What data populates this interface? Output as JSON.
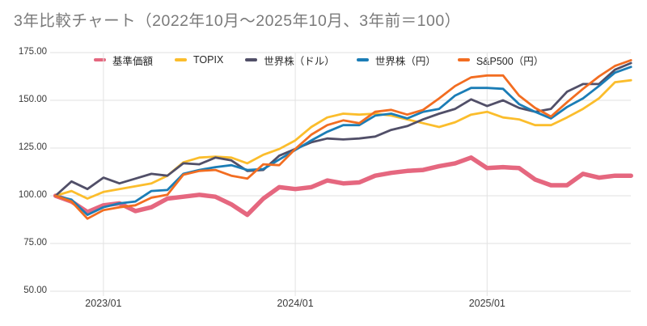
{
  "title": "3年比較チャート（2022年10月～2025年10月、3年前＝100）",
  "colors": {
    "background": "#ffffff",
    "title_text": "#7a7a7a",
    "axis_text": "#3a3a3a",
    "gridline": "#e2e2e2"
  },
  "legend": [
    {
      "key": "kijun-kagaku",
      "label": "基準価額",
      "color": "#e5677f"
    },
    {
      "key": "topix",
      "label": "TOPIX",
      "color": "#fbbd2c"
    },
    {
      "key": "sekaikabu-usd",
      "label": "世界株（ドル）",
      "color": "#514f68"
    },
    {
      "key": "sekaikabu-jpy",
      "label": "世界株（円）",
      "color": "#1b7db6"
    },
    {
      "key": "sp500-jpy",
      "label": "S&P500（円）",
      "color": "#f26d21"
    }
  ],
  "chart_data": {
    "type": "line",
    "title": "3年比較チャート（2022年10月～2025年10月、3年前＝100）",
    "xlabel": "",
    "ylabel": "",
    "ylim": [
      50,
      175
    ],
    "grid": true,
    "legend_position": "top",
    "baseline_note": "3年前＝100",
    "x_months": [
      "2022/10",
      "2022/11",
      "2022/12",
      "2023/01",
      "2023/02",
      "2023/03",
      "2023/04",
      "2023/05",
      "2023/06",
      "2023/07",
      "2023/08",
      "2023/09",
      "2023/10",
      "2023/11",
      "2023/12",
      "2024/01",
      "2024/02",
      "2024/03",
      "2024/04",
      "2024/05",
      "2024/06",
      "2024/07",
      "2024/08",
      "2024/09",
      "2024/10",
      "2024/11",
      "2024/12",
      "2025/01",
      "2025/02",
      "2025/03",
      "2025/04",
      "2025/05",
      "2025/06",
      "2025/07",
      "2025/08",
      "2025/09",
      "2025/10"
    ],
    "x_axis_ticks": [
      {
        "label": "2023/01",
        "month_index": 3
      },
      {
        "label": "2024/01",
        "month_index": 15
      },
      {
        "label": "2025/01",
        "month_index": 27
      }
    ],
    "y_ticks": [
      {
        "value": 175,
        "label": "175.00"
      },
      {
        "value": 150,
        "label": "150.00"
      },
      {
        "value": 125,
        "label": "125.00"
      },
      {
        "value": 100,
        "label": "100.00"
      },
      {
        "value": 75,
        "label": "75.00"
      },
      {
        "value": 50,
        "label": "50.00"
      }
    ],
    "series": [
      {
        "key": "kijun-kagaku",
        "name": "基準価額",
        "color": "#e5677f",
        "stroke_width": 5.5,
        "values": [
          100,
          97,
          91.5,
          95,
          96,
          92,
          94,
          98.5,
          99.5,
          100.5,
          99.5,
          95.5,
          90,
          98.5,
          104.5,
          103.5,
          104.5,
          108,
          106.5,
          107,
          110.5,
          112,
          113,
          113.5,
          115.5,
          117,
          120,
          114.5,
          115,
          114.5,
          108.5,
          105.5,
          105.5,
          111.5,
          109.5,
          110.5,
          110.5
        ]
      },
      {
        "key": "topix",
        "name": "TOPIX",
        "color": "#fbbd2c",
        "stroke_width": 2.8,
        "values": [
          100,
          102.5,
          98.5,
          102,
          103.5,
          105,
          106.5,
          110.5,
          117.5,
          120,
          120.5,
          120,
          117,
          121.5,
          124.5,
          129,
          136,
          141,
          143,
          142.5,
          143,
          142,
          140,
          138,
          136,
          138.5,
          142.5,
          144,
          141,
          140,
          137,
          137,
          141,
          145.5,
          151,
          159.5,
          160.5
        ]
      },
      {
        "key": "sekaikabu-usd",
        "name": "世界株（ドル）",
        "color": "#514f68",
        "stroke_width": 2.8,
        "values": [
          100,
          107.5,
          103.5,
          109.5,
          106.5,
          109,
          111.5,
          110.5,
          117,
          116.5,
          120,
          118.5,
          113,
          113.5,
          121,
          124.5,
          128,
          130,
          129.5,
          130,
          131,
          134.5,
          136.5,
          140,
          143,
          145.5,
          150.5,
          147,
          150,
          146,
          144,
          145.5,
          154.5,
          158.5,
          158.5,
          166,
          169.5
        ]
      },
      {
        "key": "sekaikabu-jpy",
        "name": "世界株（円）",
        "color": "#1b7db6",
        "stroke_width": 2.8,
        "values": [
          100,
          98,
          90,
          94,
          96,
          97,
          102.5,
          103,
          111.5,
          113.5,
          115,
          116,
          113.5,
          114,
          119,
          124,
          129,
          133.5,
          137,
          137,
          142,
          143,
          140.5,
          144,
          145.5,
          152.5,
          156.5,
          156.5,
          156,
          148,
          144,
          140.5,
          146.5,
          151,
          157.5,
          164.5,
          167.5
        ]
      },
      {
        "key": "sp500-jpy",
        "name": "S&P500（円）",
        "color": "#f26d21",
        "stroke_width": 2.8,
        "values": [
          100,
          97,
          88,
          92.5,
          94,
          95,
          99,
          100.5,
          111,
          113,
          113.5,
          110.5,
          109,
          116.5,
          116,
          124.5,
          132,
          137,
          139.5,
          138,
          144,
          145,
          142.5,
          145,
          151,
          157.5,
          162,
          163,
          163,
          152.5,
          146,
          141.5,
          149,
          156,
          162.5,
          168,
          171
        ]
      }
    ]
  }
}
